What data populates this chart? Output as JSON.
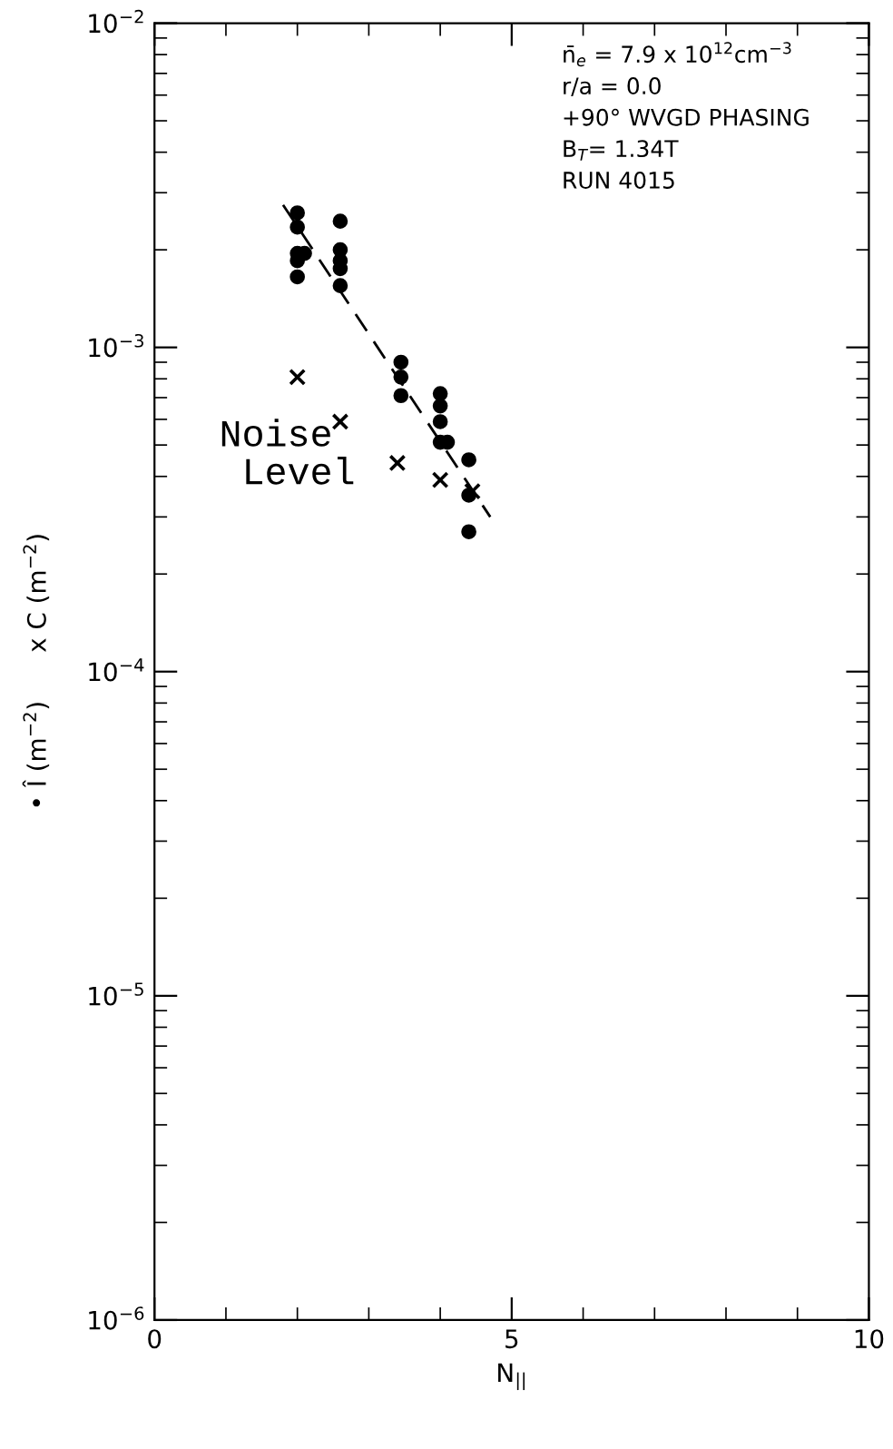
{
  "chart_data": {
    "type": "scatter",
    "xlabel": "N$_{||}$",
    "ylabel": "• Î (m$^{−2}$)      x C (m$^{−2}$)",
    "annotations": [
      "n̄$_{e}$ = 7.9 x 10$^{12}$cm$^{−3}$\nr/a = 0.0\n+90° WVGD PHASING\nB$_{T}$= 1.34T\nRUN 4015",
      "Noise\n  Level"
    ],
    "xlim": [
      0,
      10
    ],
    "xticks": [
      0,
      5,
      10
    ],
    "ylim": [
      1e-06,
      0.01
    ],
    "yticks": [
      {
        "value": 1e-06,
        "label": "10$^{−6}$"
      },
      {
        "value": 1e-05,
        "label": "10$^{−5}$"
      },
      {
        "value": 0.0001,
        "label": "10$^{−4}$"
      },
      {
        "value": 0.001,
        "label": "10$^{−3}$"
      },
      {
        "value": 0.01,
        "label": "10$^{−2}$"
      }
    ],
    "log": "y",
    "grid": false,
    "legend": false,
    "series": [
      {
        "marker": "circle",
        "color": "#000000",
        "x": [
          2.0,
          2.0,
          2.0,
          2.0,
          2.0,
          2.1,
          2.6,
          2.6,
          2.6,
          2.6,
          2.6,
          3.45,
          3.45,
          3.45,
          4.0,
          4.0,
          4.0,
          4.0,
          4.1,
          4.4,
          4.4,
          4.4
        ],
        "values": [
          0.0026,
          0.00235,
          0.00195,
          0.00185,
          0.00165,
          0.00195,
          0.00245,
          0.002,
          0.00185,
          0.00175,
          0.00155,
          0.0009,
          0.00081,
          0.00071,
          0.00072,
          0.00066,
          0.00059,
          0.00051,
          0.00051,
          0.00045,
          0.00035,
          0.00027
        ]
      },
      {
        "marker": "cross",
        "color": "#000000",
        "x": [
          2.0,
          2.6,
          3.4,
          4.0,
          4.45
        ],
        "values": [
          0.00081,
          0.00059,
          0.00044,
          0.00039,
          0.00036
        ]
      },
      {
        "type": "line",
        "line_style": "dashed",
        "color": "#000000",
        "x": [
          1.8,
          4.7
        ],
        "values": [
          0.00275,
          0.0003
        ]
      }
    ]
  }
}
